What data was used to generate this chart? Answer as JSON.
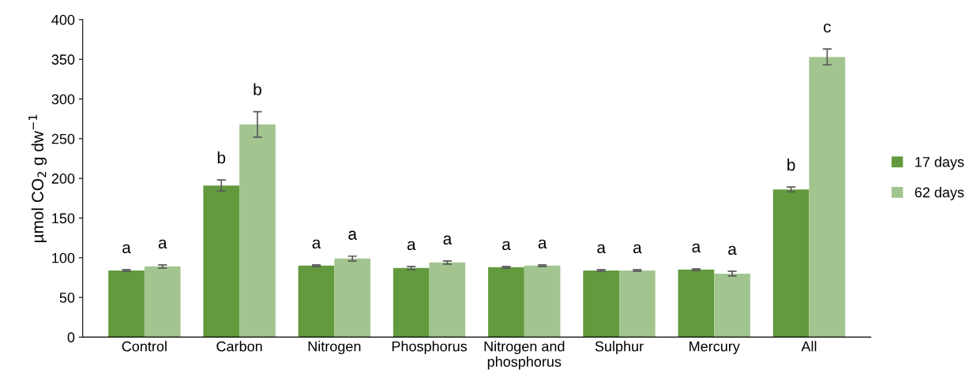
{
  "chart_data": {
    "type": "bar",
    "ylabel": "µmol CO$_{2}$ g dw$^{−1}$",
    "categories": [
      "Control",
      "Carbon",
      "Nitrogen",
      "Phosphorus",
      "Nitrogen and\nphosphorus",
      "Sulphur",
      "Mercury",
      "All"
    ],
    "series": [
      {
        "name": "17 days",
        "color": "#629a3d",
        "values": [
          84,
          191,
          90,
          87,
          88,
          84,
          85,
          186
        ],
        "errors": [
          1,
          7,
          1,
          2,
          1,
          1,
          1,
          3
        ],
        "value_labels": [
          "a",
          "b",
          "a",
          "a",
          "a",
          "a",
          "a",
          "b"
        ]
      },
      {
        "name": "62 days",
        "color": "#a2c58f",
        "values": [
          89,
          268,
          99,
          94,
          90,
          84,
          80,
          353
        ],
        "errors": [
          2,
          16,
          3,
          2,
          1,
          1,
          3,
          10
        ],
        "value_labels": [
          "a",
          "b",
          "a",
          "a",
          "a",
          "a",
          "a",
          "c"
        ]
      }
    ],
    "ylim": [
      0,
      400
    ],
    "yticks": [
      0,
      50,
      100,
      150,
      200,
      250,
      300,
      350,
      400
    ],
    "grid": false,
    "legend": "right"
  }
}
